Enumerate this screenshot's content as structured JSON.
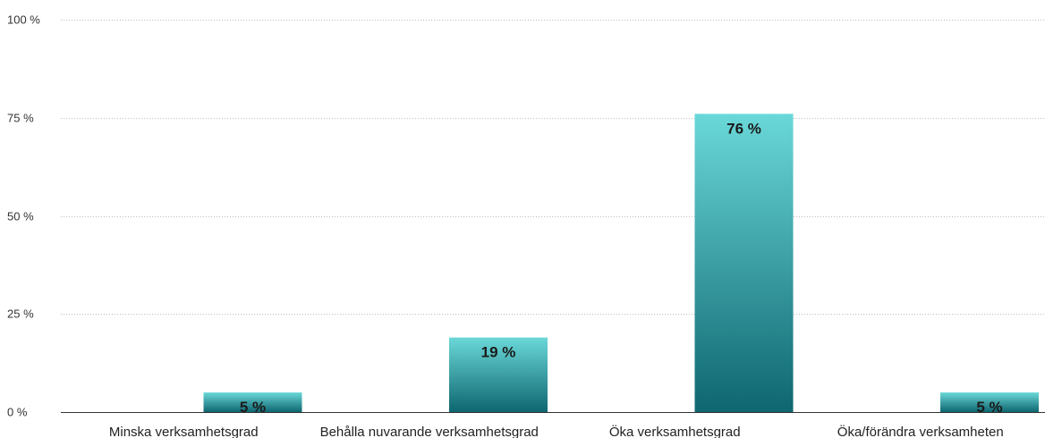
{
  "chart_data": {
    "type": "bar",
    "categories": [
      "Minska verksamhetsgrad",
      "Behålla nuvarande verksamhetsgrad",
      "Öka verksamhetsgrad",
      "Öka/förändra verksamheten"
    ],
    "values": [
      5,
      19,
      76,
      5
    ],
    "value_labels": [
      "5 %",
      "19 %",
      "76 %",
      "5 %"
    ],
    "yticks": [
      0,
      25,
      50,
      75,
      100
    ],
    "ytick_labels": [
      "0 %",
      "25 %",
      "50 %",
      "75 %",
      "100 %"
    ],
    "ylim": [
      0,
      100
    ],
    "grid": true,
    "title": "",
    "xlabel": "",
    "ylabel": "",
    "colors": {
      "bar_top": "#6ad8d8",
      "bar_bottom": "#0e6670",
      "grid": "#bdbdbd",
      "text": "#222222"
    }
  }
}
